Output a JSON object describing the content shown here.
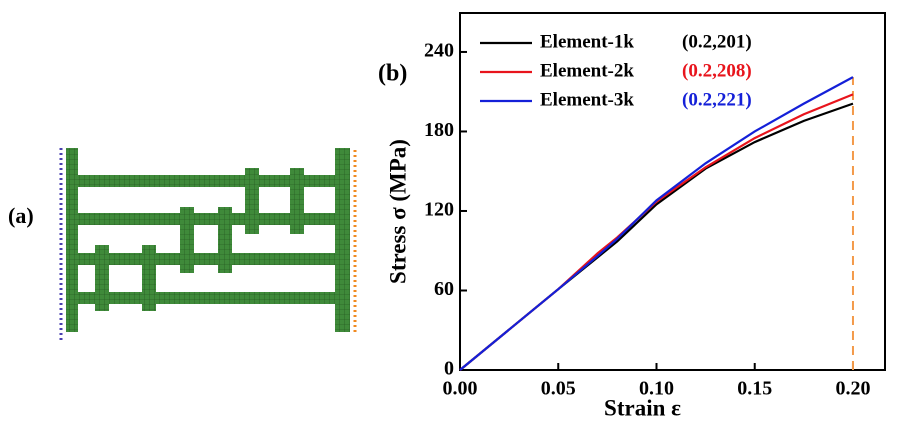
{
  "chart_data": {
    "type": "line",
    "panel_labels": [
      "(a)",
      "(b)"
    ],
    "x_label": "Strain ε",
    "y_label": "Stress σ (MPa)",
    "x": [
      0,
      0.05,
      0.07,
      0.08,
      0.1,
      0.125,
      0.15,
      0.175,
      0.2
    ],
    "series": [
      {
        "name": "Element-1k",
        "annotation": "(0.2,201)",
        "color": "#000000",
        "values": [
          0,
          61,
          85,
          97,
          125,
          152,
          172,
          188,
          201
        ]
      },
      {
        "name": "Element-2k",
        "annotation": "(0.2,208)",
        "color": "#e8141c",
        "values": [
          0,
          61,
          88,
          100,
          127,
          153,
          175,
          193,
          208
        ]
      },
      {
        "name": "Element-3k",
        "annotation": "(0.2,221)",
        "color": "#1420d8",
        "values": [
          0,
          61,
          86,
          99,
          128,
          156,
          180,
          201,
          221
        ]
      }
    ],
    "xlim": [
      0,
      0.2163
    ],
    "ylim": [
      0,
      269.4
    ],
    "xticks": [
      {
        "value": 0,
        "label": "0.00"
      },
      {
        "value": 0.05,
        "label": "0.05"
      },
      {
        "value": 0.1,
        "label": "0.10"
      },
      {
        "value": 0.15,
        "label": "0.15"
      },
      {
        "value": 0.2,
        "label": "0.20"
      }
    ],
    "yticks": [
      0,
      60,
      120,
      180,
      240
    ],
    "legend": "upper-left"
  }
}
